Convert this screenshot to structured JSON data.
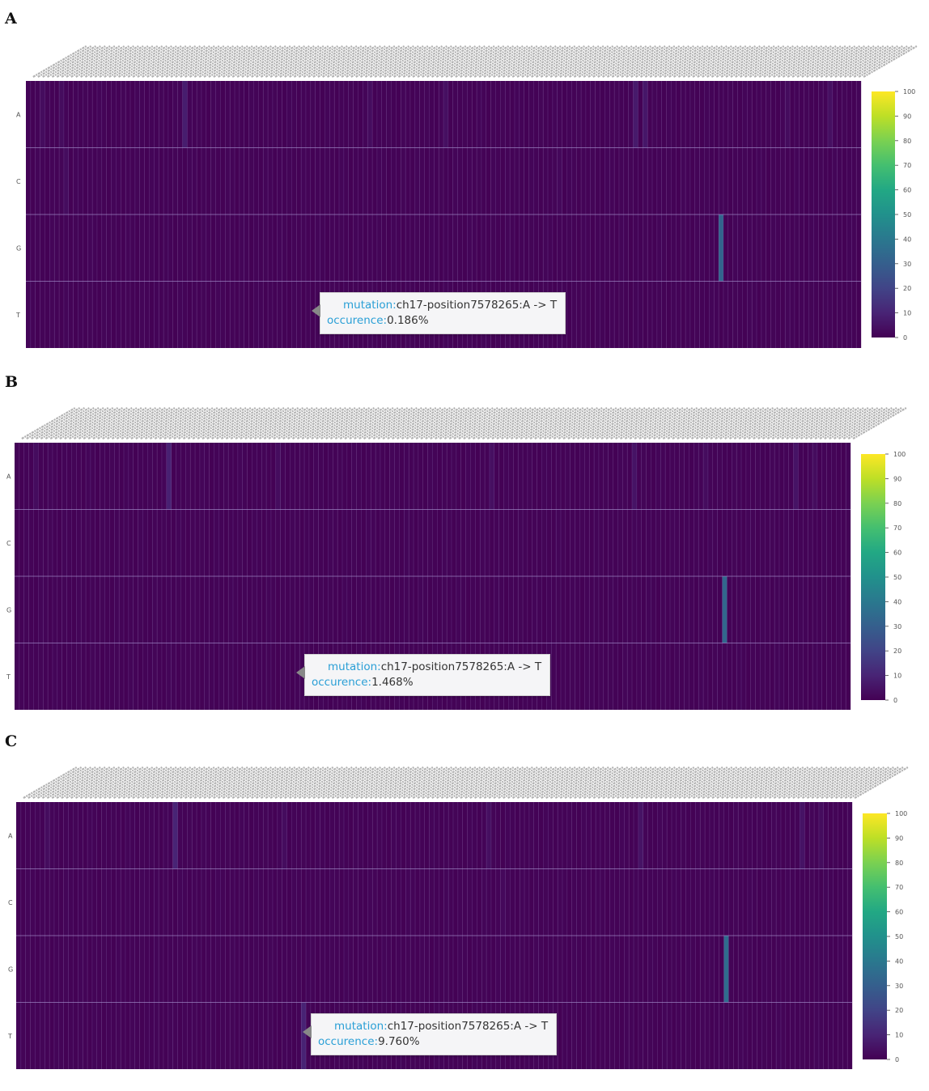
{
  "chart_data": [
    {
      "panel": "A",
      "type": "heatmap",
      "rows": [
        "A",
        "C",
        "G",
        "T"
      ],
      "n_columns": 176,
      "column_label_pattern": "ch17-position75xxxxx:X -> Y",
      "colorbar": {
        "min": 0,
        "max": 100,
        "ticks": [
          0,
          10,
          20,
          30,
          40,
          50,
          60,
          70,
          80,
          90,
          100
        ]
      },
      "highlights": [
        {
          "row": "A",
          "col": 33,
          "value": 8
        },
        {
          "row": "A",
          "col": 128,
          "value": 7
        },
        {
          "row": "A",
          "col": 130,
          "value": 6
        },
        {
          "row": "A",
          "col": 88,
          "value": 4
        },
        {
          "row": "A",
          "col": 72,
          "value": 3
        },
        {
          "row": "A",
          "col": 169,
          "value": 4
        },
        {
          "row": "A",
          "col": 3,
          "value": 3
        },
        {
          "row": "A",
          "col": 7,
          "value": 3
        },
        {
          "row": "A",
          "col": 160,
          "value": 3
        },
        {
          "row": "C",
          "col": 8,
          "value": 3
        },
        {
          "row": "C",
          "col": 112,
          "value": 2
        },
        {
          "row": "G",
          "col": 146,
          "value": 32
        },
        {
          "row": "T",
          "col": 60,
          "value": 0.186
        }
      ],
      "tooltip": {
        "mutation_key": "mutation:",
        "mutation_value": "ch17-position7578265:A -> T",
        "occurence_key": "occurence:",
        "occurence_value": "0.186%"
      }
    },
    {
      "panel": "B",
      "type": "heatmap",
      "rows": [
        "A",
        "C",
        "G",
        "T"
      ],
      "n_columns": 176,
      "column_label_pattern": "ch17-position75xxxxx:X -> Y",
      "colorbar": {
        "min": 0,
        "max": 100,
        "ticks": [
          0,
          10,
          20,
          30,
          40,
          50,
          60,
          70,
          80,
          90,
          100
        ]
      },
      "highlights": [
        {
          "row": "A",
          "col": 32,
          "value": 9
        },
        {
          "row": "A",
          "col": 130,
          "value": 5
        },
        {
          "row": "A",
          "col": 164,
          "value": 5
        },
        {
          "row": "A",
          "col": 100,
          "value": 4
        },
        {
          "row": "A",
          "col": 55,
          "value": 3
        },
        {
          "row": "A",
          "col": 4,
          "value": 3
        },
        {
          "row": "A",
          "col": 145,
          "value": 3
        },
        {
          "row": "A",
          "col": 168,
          "value": 3
        },
        {
          "row": "G",
          "col": 149,
          "value": 33
        },
        {
          "row": "T",
          "col": 60,
          "value": 1.468
        }
      ],
      "tooltip": {
        "mutation_key": "mutation:",
        "mutation_value": "ch17-position7578265:A -> T",
        "occurence_key": "occurence:",
        "occurence_value": "1.468%"
      }
    },
    {
      "panel": "C",
      "type": "heatmap",
      "rows": [
        "A",
        "C",
        "G",
        "T"
      ],
      "n_columns": 176,
      "column_label_pattern": "ch17-position75xxxxx:X -> Y",
      "colorbar": {
        "min": 0,
        "max": 100,
        "ticks": [
          0,
          10,
          20,
          30,
          40,
          50,
          60,
          70,
          80,
          90,
          100
        ]
      },
      "highlights": [
        {
          "row": "A",
          "col": 33,
          "value": 10
        },
        {
          "row": "A",
          "col": 131,
          "value": 5
        },
        {
          "row": "A",
          "col": 165,
          "value": 5
        },
        {
          "row": "A",
          "col": 99,
          "value": 4
        },
        {
          "row": "A",
          "col": 56,
          "value": 3
        },
        {
          "row": "A",
          "col": 6,
          "value": 3
        },
        {
          "row": "A",
          "col": 169,
          "value": 3
        },
        {
          "row": "C",
          "col": 102,
          "value": 2
        },
        {
          "row": "G",
          "col": 149,
          "value": 35
        },
        {
          "row": "T",
          "col": 60,
          "value": 9.76
        }
      ],
      "tooltip": {
        "mutation_key": "mutation:",
        "mutation_value": "ch17-position7578265:A -> T",
        "occurence_key": "occurence:",
        "occurence_value": "9.760%"
      }
    }
  ],
  "panel_labels": [
    "A",
    "B",
    "C"
  ]
}
